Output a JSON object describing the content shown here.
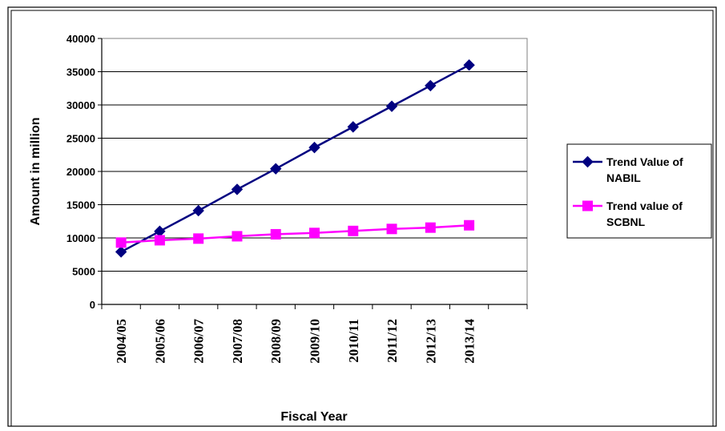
{
  "chart_data": {
    "type": "line",
    "categories": [
      "2004/05",
      "2005/06",
      "2006/07",
      "2007/08",
      "2008/09",
      "2009/10",
      "2010/11",
      "2011/12",
      "2012/13",
      "2013/14"
    ],
    "series": [
      {
        "name": "Trend Value of NABIL",
        "legend_lines": [
          "Trend Value of",
          "NABIL"
        ],
        "color": "#000080",
        "marker": "diamond",
        "values": [
          7900,
          11000,
          14100,
          17300,
          20400,
          23600,
          26700,
          29800,
          32900,
          36000
        ]
      },
      {
        "name": "Trend value of SCBNL",
        "legend_lines": [
          "Trend value of",
          "SCBNL"
        ],
        "color": "#FF00FF",
        "marker": "square",
        "values": [
          9300,
          9650,
          9900,
          10250,
          10550,
          10750,
          11050,
          11350,
          11550,
          11900
        ]
      }
    ],
    "xlabel": "Fiscal Year",
    "ylabel": "Amount in million",
    "ylim": [
      0,
      40000
    ],
    "yticks": [
      0,
      5000,
      10000,
      15000,
      20000,
      25000,
      30000,
      35000,
      40000
    ],
    "grid": "horizontal",
    "legend_position": "right"
  }
}
